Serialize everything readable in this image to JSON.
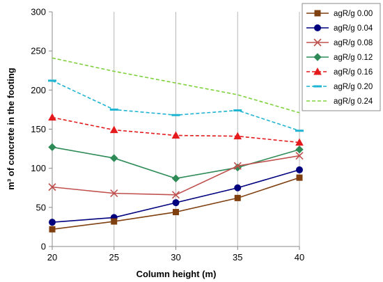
{
  "chart_data": {
    "type": "line",
    "xlabel": "Column height (m)",
    "ylabel": "m³ of concrete in the footing",
    "x": [
      20,
      25,
      30,
      35,
      40
    ],
    "xlim": [
      20,
      40
    ],
    "ylim": [
      0,
      300
    ],
    "yticks": [
      0,
      50,
      100,
      150,
      200,
      250,
      300
    ],
    "grid": "vertical",
    "legend_position": "top-right",
    "series": [
      {
        "name": "agR/g 0.00",
        "values": [
          22,
          32,
          44,
          62,
          88
        ],
        "color": "#7F3F0F",
        "marker": "square",
        "dash": "solid"
      },
      {
        "name": "agR/g 0.04",
        "values": [
          31,
          37,
          56,
          75,
          98
        ],
        "color": "#00007F",
        "marker": "circle",
        "dash": "solid"
      },
      {
        "name": "agR/g 0.08",
        "values": [
          76,
          68,
          66,
          103,
          116
        ],
        "color": "#C0504D",
        "marker": "x",
        "dash": "solid"
      },
      {
        "name": "agR/g 0.12",
        "values": [
          127,
          113,
          87,
          101,
          124
        ],
        "color": "#2E8B57",
        "marker": "diamond",
        "dash": "solid"
      },
      {
        "name": "agR/g 0.16",
        "values": [
          165,
          149,
          142,
          141,
          133
        ],
        "color": "#E41A1C",
        "marker": "triangle",
        "dash": "dashed"
      },
      {
        "name": "agR/g 0.20",
        "values": [
          212,
          175,
          168,
          174,
          148
        ],
        "color": "#1FB4D2",
        "marker": "bar",
        "dash": "dashed"
      },
      {
        "name": "agR/g 0.24",
        "values": [
          241,
          224,
          209,
          194,
          171
        ],
        "color": "#7FD13B",
        "marker": "none",
        "dash": "dashed"
      }
    ]
  }
}
